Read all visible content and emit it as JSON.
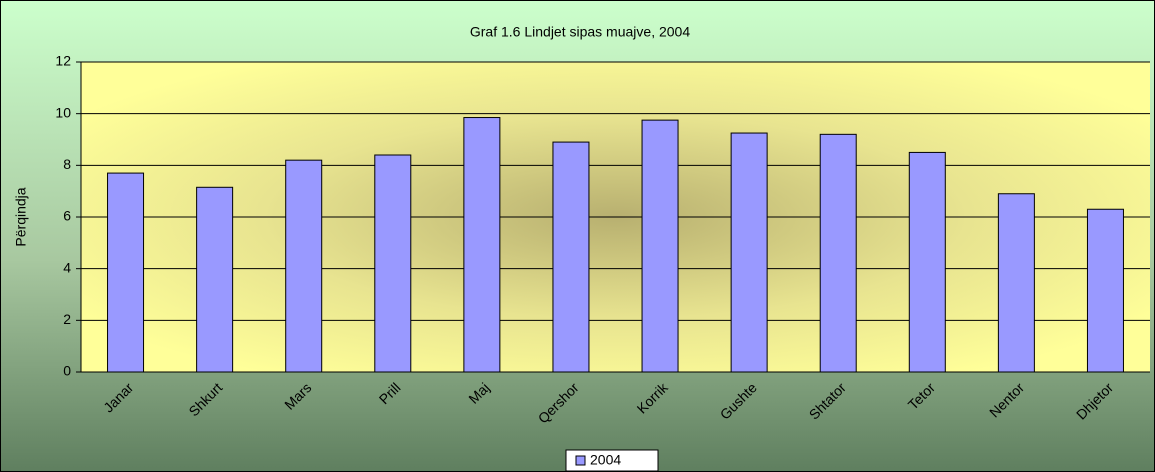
{
  "chart_data": {
    "type": "bar",
    "title": "Graf 1.6  Lindjet sipas muajve, 2004",
    "y_label": "Përqindja",
    "categories": [
      "Janar",
      "Shkurt",
      "Mars",
      "Prill",
      "Maj",
      "Qershor",
      "Korrik",
      "Gushte",
      "Shtator",
      "Tetor",
      "Nentor",
      "Dhjetor"
    ],
    "series": [
      {
        "name": "2004",
        "color": "#9999ff",
        "values": [
          7.7,
          7.15,
          8.2,
          8.4,
          9.85,
          8.9,
          9.75,
          9.25,
          9.2,
          8.5,
          6.9,
          6.3
        ]
      }
    ],
    "ylim": [
      0,
      12
    ],
    "yticks": [
      0,
      2,
      4,
      6,
      8,
      10,
      12
    ],
    "grid": true,
    "legend": "bottom"
  }
}
